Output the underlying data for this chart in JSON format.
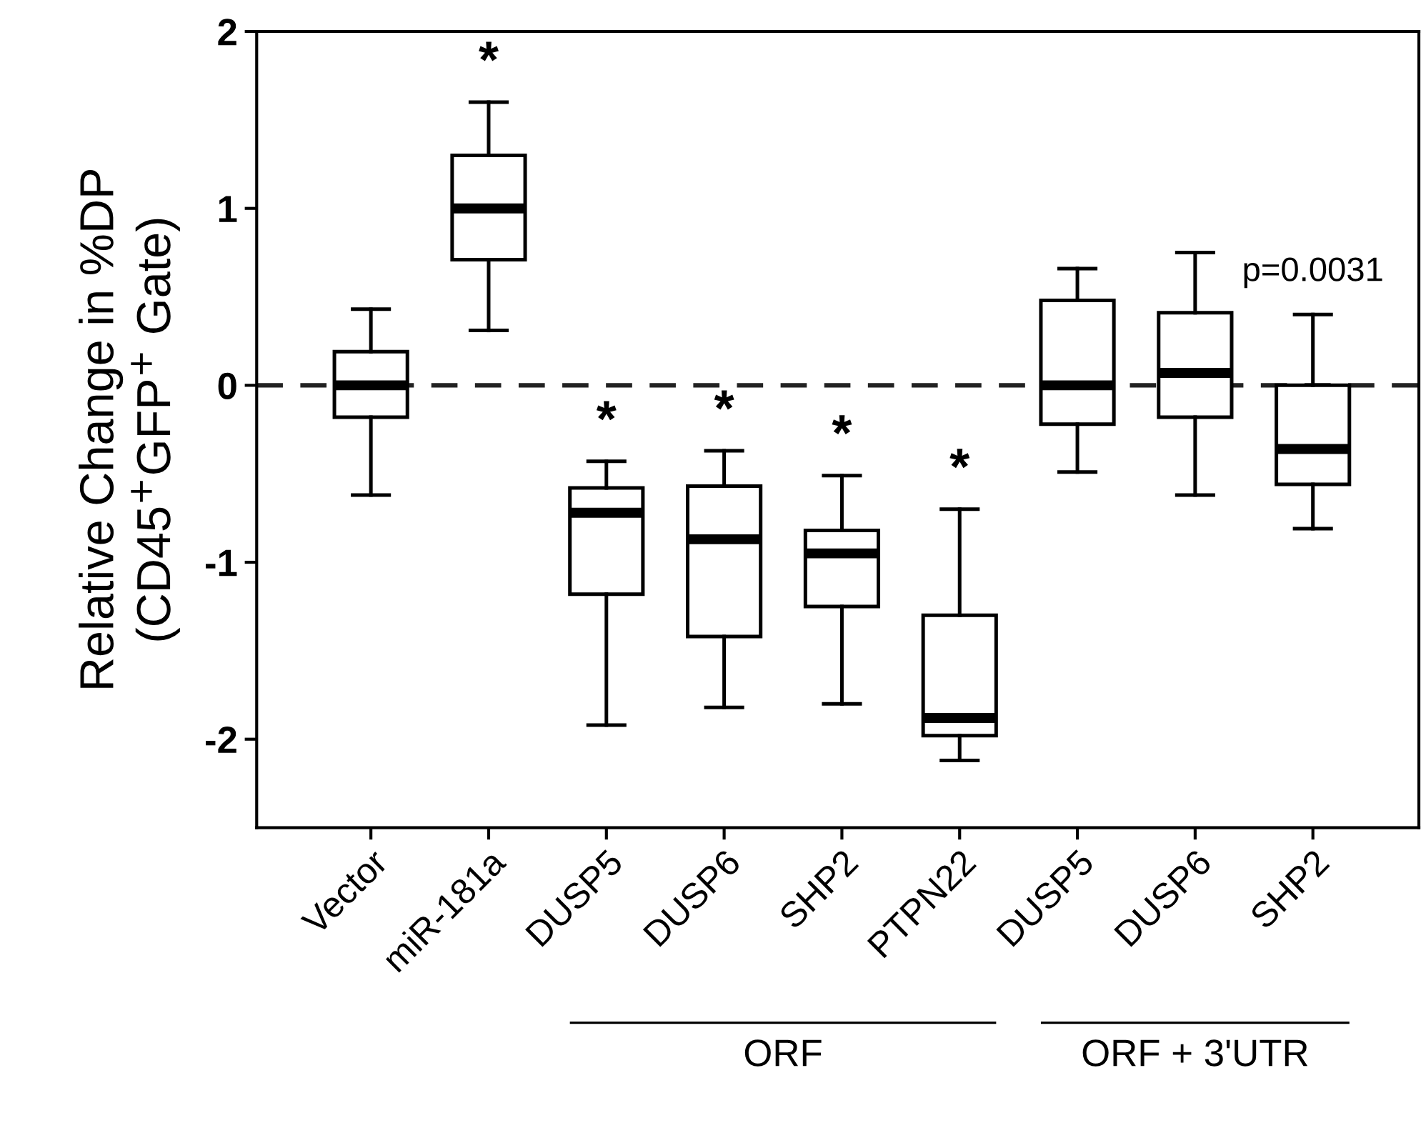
{
  "chart_data": {
    "type": "box",
    "ylabel": "Relative Change in %DP\n(CD45$^{+}$GFP$^{+}$ Gate)",
    "categories": [
      "Vector",
      "miR-181a",
      "DUSP5",
      "DUSP6",
      "SHP2",
      "PTPN22",
      "DUSP5",
      "DUSP6",
      "SHP2"
    ],
    "boxes": [
      {
        "low": -0.62,
        "q1": -0.18,
        "median": 0,
        "q3": 0.19,
        "high": 0.43
      },
      {
        "low": 0.31,
        "q1": 0.71,
        "median": 1.0,
        "q3": 1.3,
        "high": 1.6
      },
      {
        "low": -1.92,
        "q1": -1.18,
        "median": -0.72,
        "q3": -0.58,
        "high": -0.43
      },
      {
        "low": -1.82,
        "q1": -1.42,
        "median": -0.87,
        "q3": -0.57,
        "high": -0.37
      },
      {
        "low": -1.8,
        "q1": -1.25,
        "median": -0.95,
        "q3": -0.82,
        "high": -0.51
      },
      {
        "low": -2.12,
        "q1": -1.98,
        "median": -1.88,
        "q3": -1.3,
        "high": -0.7
      },
      {
        "low": -0.49,
        "q1": -0.22,
        "median": 0,
        "q3": 0.48,
        "high": 0.66
      },
      {
        "low": -0.62,
        "q1": -0.18,
        "median": 0.07,
        "q3": 0.41,
        "high": 0.75
      },
      {
        "low": -0.81,
        "q1": -0.56,
        "median": -0.36,
        "q3": 0,
        "high": 0.4
      }
    ],
    "color": "#000000",
    "ylim": [
      -2.5,
      2
    ],
    "yticks": [
      -2,
      -1,
      0,
      1,
      2
    ],
    "ref_lines": [
      {
        "axis": "y",
        "value": 0,
        "line_style": "dashed"
      }
    ],
    "annotations": [
      "*",
      "*",
      "*",
      "*",
      "*",
      "p=0.0031",
      "ORF",
      "ORF + 3'UTR"
    ],
    "grid": false
  }
}
